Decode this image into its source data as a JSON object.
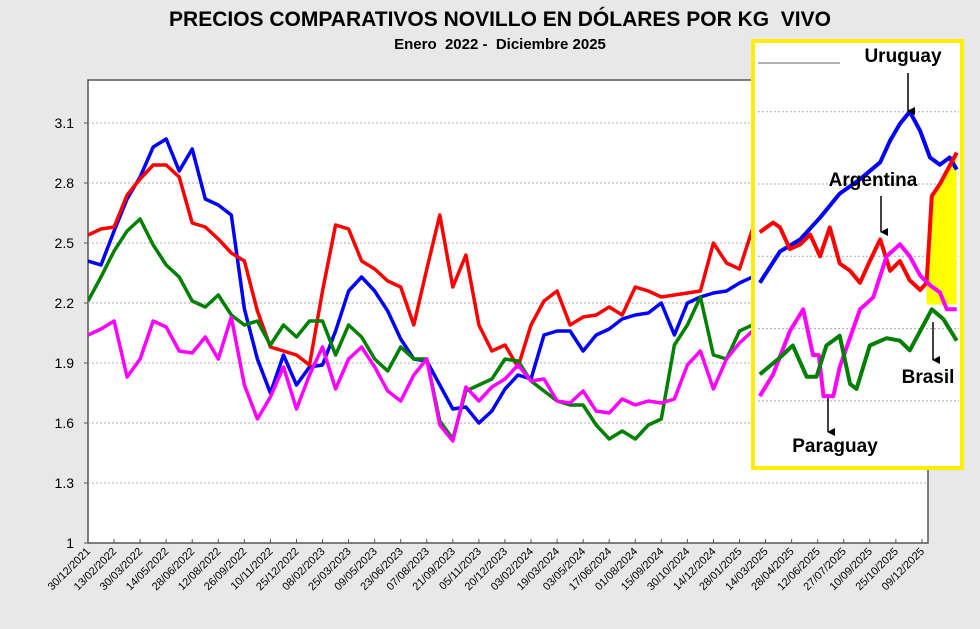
{
  "chart_data": {
    "type": "line",
    "title": "PRECIOS COMPARATIVOS NOVILLO EN DÓLARES POR KG  VIVO",
    "subtitle": "Enero  2022 -  Diciembre 2025",
    "xlabel": "",
    "ylabel": "",
    "x_unit": "days since 30/12/2021",
    "ylim": [
      1,
      3.3
    ],
    "yticks": [
      "1",
      "1.3",
      "1.6",
      "1.9",
      "2.2",
      "2.5",
      "2.8",
      "3.1"
    ],
    "ytick_values": [
      1,
      1.3,
      1.6,
      1.9,
      2.2,
      2.5,
      2.8,
      3.1
    ],
    "xticks": [
      "30/12/2021",
      "13/02/2022",
      "30/03/2022",
      "14/05/2022",
      "28/06/2022",
      "12/08/2022",
      "26/09/2022",
      "10/11/2022",
      "25/12/2022",
      "08/02/2023",
      "25/03/2023",
      "09/05/2023",
      "23/06/2023",
      "07/08/2023",
      "21/09/2023",
      "05/11/2023",
      "20/12/2023",
      "03/02/2024",
      "19/03/2024",
      "03/05/2024",
      "17/06/2024",
      "01/08/2024",
      "15/09/2024",
      "30/10/2024",
      "14/12/2024",
      "28/01/2025",
      "14/03/2025",
      "28/04/2025",
      "12/06/2025",
      "27/07/2025",
      "10/09/2025",
      "25/10/2025",
      "09/12/2025"
    ],
    "xtick_step_days": 45,
    "grid": true,
    "sample_step_days": 22.5,
    "series": [
      {
        "name": "Uruguay",
        "color": "#0000ff",
        "values": [
          2.41,
          2.39,
          2.56,
          2.72,
          2.83,
          2.98,
          3.02,
          2.86,
          2.97,
          2.72,
          2.69,
          2.64,
          2.17,
          1.92,
          1.75,
          1.94,
          1.79,
          1.88,
          1.89,
          2.06,
          2.26,
          2.33,
          2.26,
          2.16,
          2.02,
          1.92,
          1.91,
          1.79,
          1.67,
          1.68,
          1.6,
          1.66,
          1.77,
          1.84,
          1.82,
          2.04,
          2.06,
          2.06,
          1.96,
          2.04,
          2.07,
          2.12,
          2.14,
          2.15,
          2.2,
          2.04,
          2.2,
          2.23,
          2.25,
          2.26,
          2.3,
          2.33
        ]
      },
      {
        "name": "Argentina",
        "color": "#ff0000",
        "values": [
          2.54,
          2.57,
          2.58,
          2.74,
          2.82,
          2.89,
          2.89,
          2.83,
          2.6,
          2.58,
          2.52,
          2.45,
          2.41,
          2.16,
          1.98,
          1.96,
          1.94,
          1.89,
          2.26,
          2.59,
          2.57,
          2.41,
          2.37,
          2.31,
          2.28,
          2.09,
          2.37,
          2.64,
          2.28,
          2.44,
          2.09,
          1.96,
          1.99,
          1.88,
          2.09,
          2.21,
          2.26,
          2.09,
          2.13,
          2.14,
          2.18,
          2.14,
          2.28,
          2.26,
          2.23,
          2.24,
          2.25,
          2.26,
          2.5,
          2.4,
          2.37,
          2.57
        ]
      },
      {
        "name": "Brasil",
        "color": "#008000",
        "values": [
          2.21,
          2.33,
          2.46,
          2.56,
          2.62,
          2.49,
          2.39,
          2.33,
          2.21,
          2.18,
          2.24,
          2.14,
          2.09,
          2.11,
          1.99,
          2.09,
          2.03,
          2.11,
          2.11,
          1.94,
          2.09,
          2.03,
          1.92,
          1.86,
          1.98,
          1.92,
          1.92,
          1.61,
          1.52,
          1.76,
          1.79,
          1.82,
          1.92,
          1.91,
          1.81,
          1.76,
          1.71,
          1.69,
          1.69,
          1.59,
          1.52,
          1.56,
          1.52,
          1.59,
          1.62,
          1.99,
          2.09,
          2.23,
          1.94,
          1.92,
          2.06,
          2.09
        ]
      },
      {
        "name": "Paraguay",
        "color": "#ff00ff",
        "values": [
          2.04,
          2.07,
          2.11,
          1.83,
          1.92,
          2.11,
          2.08,
          1.96,
          1.95,
          2.03,
          1.92,
          2.13,
          1.79,
          1.62,
          1.73,
          1.88,
          1.67,
          1.84,
          1.98,
          1.77,
          1.92,
          1.98,
          1.88,
          1.76,
          1.71,
          1.84,
          1.92,
          1.59,
          1.51,
          1.78,
          1.71,
          1.78,
          1.82,
          1.89,
          1.81,
          1.82,
          1.71,
          1.7,
          1.76,
          1.66,
          1.65,
          1.72,
          1.69,
          1.71,
          1.7,
          1.72,
          1.89,
          1.96,
          1.77,
          1.92,
          2.0,
          2.06
        ]
      }
    ],
    "inset": {
      "highlight_color": "#ffff00",
      "labels": {
        "uruguay": "Uruguay",
        "argentina": "Argentina",
        "brasil": "Brasil",
        "paraguay": "Paraguay"
      },
      "series": [
        {
          "name": "Uruguay",
          "color": "#0000ff",
          "points": [
            [
              1160,
              2.39
            ],
            [
              1195,
              2.52
            ],
            [
              1230,
              2.57
            ],
            [
              1264,
              2.66
            ],
            [
              1298,
              2.76
            ],
            [
              1333,
              2.82
            ],
            [
              1368,
              2.89
            ],
            [
              1385,
              2.98
            ],
            [
              1402,
              3.05
            ],
            [
              1419,
              3.1
            ],
            [
              1437,
              3.02
            ],
            [
              1454,
              2.91
            ],
            [
              1471,
              2.88
            ],
            [
              1488,
              2.91
            ],
            [
              1500,
              2.86
            ]
          ]
        },
        {
          "name": "Argentina",
          "color": "#ff0000",
          "points": [
            [
              1160,
              2.6
            ],
            [
              1183,
              2.64
            ],
            [
              1195,
              2.62
            ],
            [
              1212,
              2.53
            ],
            [
              1230,
              2.55
            ],
            [
              1247,
              2.59
            ],
            [
              1264,
              2.5
            ],
            [
              1281,
              2.62
            ],
            [
              1298,
              2.47
            ],
            [
              1316,
              2.44
            ],
            [
              1333,
              2.39
            ],
            [
              1350,
              2.48
            ],
            [
              1368,
              2.57
            ],
            [
              1385,
              2.44
            ],
            [
              1402,
              2.48
            ],
            [
              1419,
              2.4
            ],
            [
              1437,
              2.36
            ],
            [
              1448,
              2.39
            ],
            [
              1457,
              2.75
            ],
            [
              1471,
              2.8
            ],
            [
              1500,
              2.93
            ]
          ]
        },
        {
          "name": "Paraguay",
          "color": "#ff00ff",
          "points": [
            [
              1160,
              1.92
            ],
            [
              1183,
              2.01
            ],
            [
              1212,
              2.19
            ],
            [
              1235,
              2.28
            ],
            [
              1252,
              2.09
            ],
            [
              1262,
              2.09
            ],
            [
              1270,
              1.92
            ],
            [
              1287,
              1.92
            ],
            [
              1298,
              2.04
            ],
            [
              1333,
              2.28
            ],
            [
              1356,
              2.33
            ],
            [
              1379,
              2.5
            ],
            [
              1402,
              2.55
            ],
            [
              1419,
              2.5
            ],
            [
              1437,
              2.42
            ],
            [
              1454,
              2.38
            ],
            [
              1471,
              2.35
            ],
            [
              1483,
              2.28
            ],
            [
              1500,
              2.28
            ]
          ]
        },
        {
          "name": "Brasil",
          "color": "#008000",
          "points": [
            [
              1160,
              2.01
            ],
            [
              1195,
              2.08
            ],
            [
              1217,
              2.13
            ],
            [
              1241,
              2.0
            ],
            [
              1258,
              2.0
            ],
            [
              1275,
              2.13
            ],
            [
              1298,
              2.17
            ],
            [
              1316,
              1.97
            ],
            [
              1327,
              1.95
            ],
            [
              1350,
              2.13
            ],
            [
              1379,
              2.16
            ],
            [
              1402,
              2.15
            ],
            [
              1419,
              2.11
            ],
            [
              1437,
              2.19
            ],
            [
              1457,
              2.28
            ],
            [
              1477,
              2.24
            ],
            [
              1500,
              2.15
            ]
          ]
        }
      ]
    }
  }
}
